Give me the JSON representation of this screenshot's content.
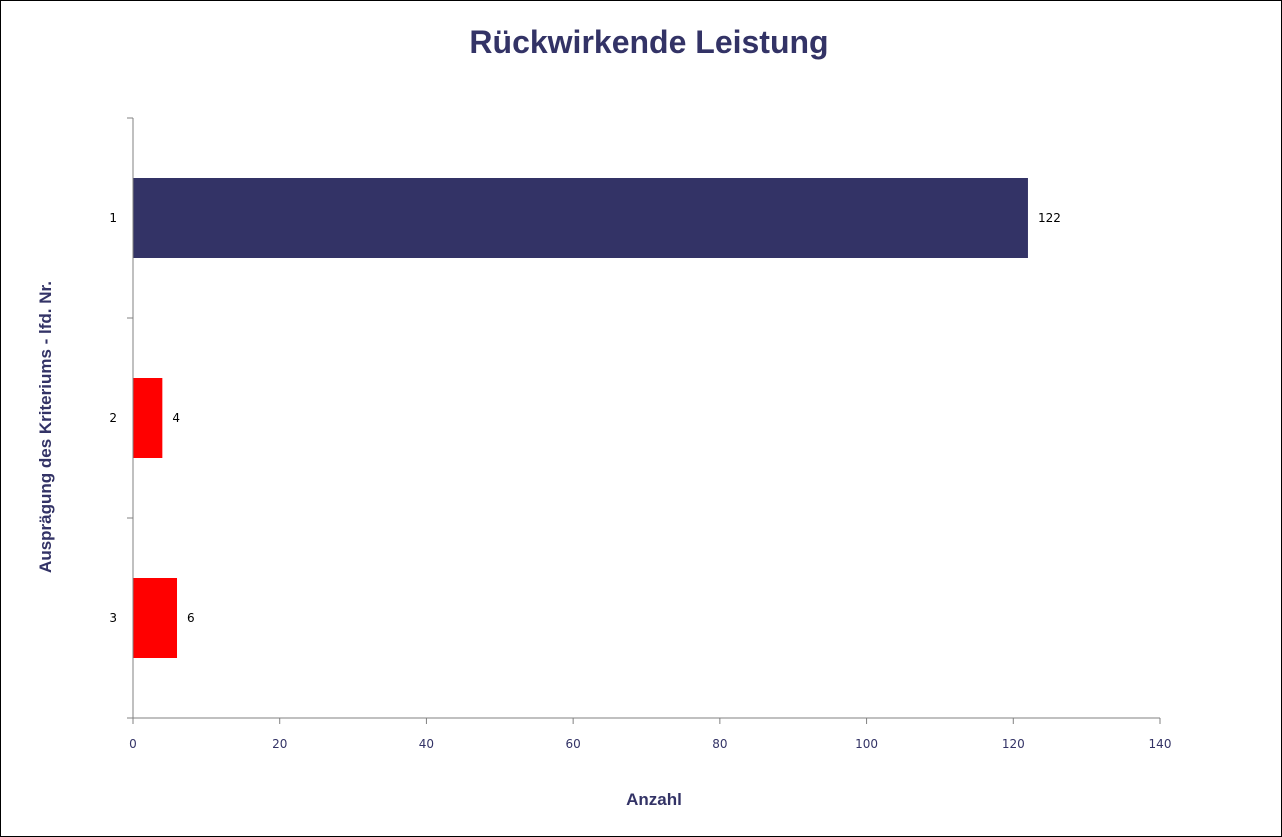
{
  "chart_data": {
    "type": "bar",
    "orientation": "horizontal",
    "title": "Rückwirkende Leistung",
    "xlabel": "Anzahl",
    "ylabel": "Ausprägung des Kriteriums - lfd. Nr.",
    "categories": [
      "1",
      "2",
      "3"
    ],
    "values": [
      122,
      4,
      6
    ],
    "data_labels": [
      "122",
      "4",
      "6"
    ],
    "bar_colors": [
      "#333366",
      "#ff0000",
      "#ff0000"
    ],
    "xlim": [
      0,
      140
    ],
    "xticks": [
      0,
      20,
      40,
      60,
      80,
      100,
      120,
      140
    ],
    "xtick_labels": [
      "0",
      "20",
      "40",
      "60",
      "80",
      "100",
      "120",
      "140"
    ],
    "grid": false,
    "legend": "none"
  },
  "colors": {
    "title": "#333366",
    "axis_title": "#333366",
    "tick_label_x": "#333366",
    "tick_label_y": "#000000",
    "axis_line": "#808080"
  }
}
